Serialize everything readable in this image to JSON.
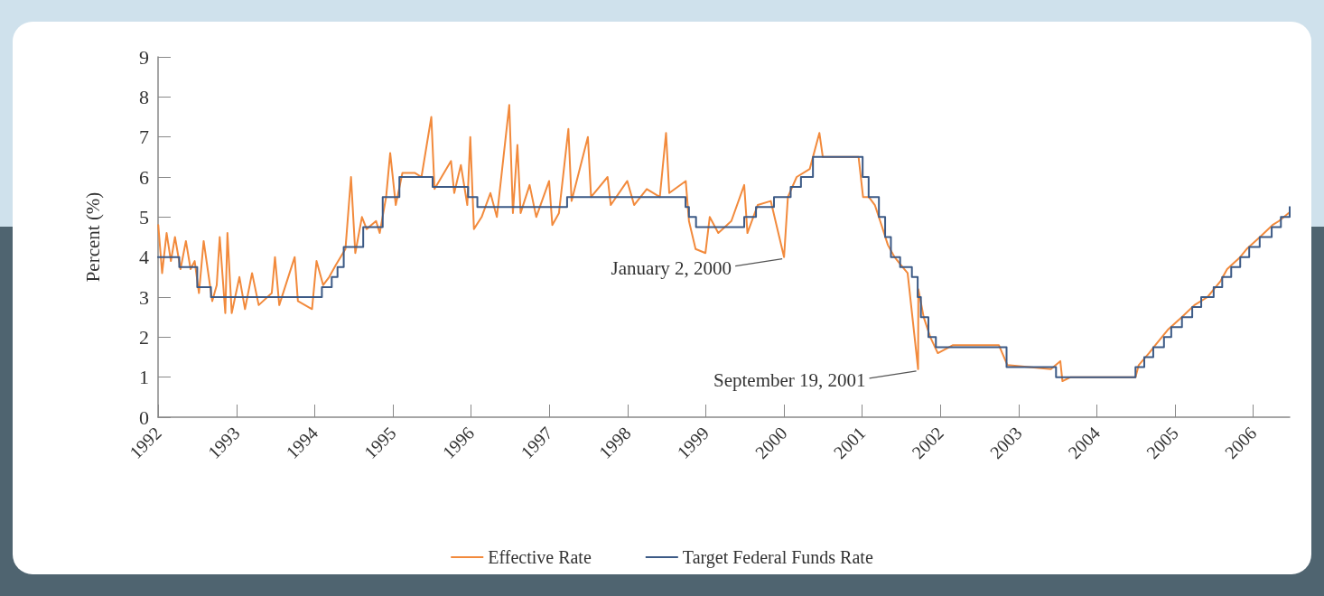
{
  "chart_data": {
    "type": "line",
    "ylabel": "Percent (%)",
    "xlim": [
      "1992-01-01",
      "2006-06-20"
    ],
    "xticks": [
      "1992",
      "1993",
      "1994",
      "1995",
      "1996",
      "1997",
      "1998",
      "1999",
      "2000",
      "2001",
      "2002",
      "2003",
      "2004",
      "2005",
      "2006"
    ],
    "ylim": [
      0,
      9
    ],
    "yticks": [
      0,
      1,
      2,
      3,
      4,
      5,
      6,
      7,
      8,
      9
    ],
    "grid": false,
    "legend": "bottom",
    "marker": "none",
    "line_style": "solid",
    "annotations": [
      {
        "text": "January 2, 2000",
        "x": "2000-01-02",
        "y": 4.0
      },
      {
        "text": "September 19, 2001",
        "x": "2001-09-19",
        "y": 1.2
      }
    ],
    "series": [
      {
        "name": "Effective Rate",
        "color": "#f28a3c",
        "x": [
          "1992-01-02",
          "1992-01-20",
          "1992-02-10",
          "1992-03-01",
          "1992-03-20",
          "1992-04-15",
          "1992-05-10",
          "1992-06-01",
          "1992-06-20",
          "1992-07-10",
          "1992-08-01",
          "1992-09-10",
          "1992-10-01",
          "1992-10-15",
          "1992-11-10",
          "1992-11-20",
          "1992-12-10",
          "1993-01-15",
          "1993-02-10",
          "1993-03-15",
          "1993-04-15",
          "1993-06-15",
          "1993-06-30",
          "1993-07-20",
          "1993-09-30",
          "1993-10-15",
          "1993-12-20",
          "1994-01-10",
          "1994-02-10",
          "1994-03-10",
          "1994-04-10",
          "1994-05-25",
          "1994-06-20",
          "1994-07-10",
          "1994-08-10",
          "1994-09-01",
          "1994-10-15",
          "1994-11-01",
          "1994-12-01",
          "1994-12-20",
          "1995-01-15",
          "1995-02-15",
          "1995-04-15",
          "1995-05-15",
          "1995-06-30",
          "1995-07-15",
          "1995-09-30",
          "1995-10-15",
          "1995-11-15",
          "1995-12-15",
          "1995-12-29",
          "1996-01-15",
          "1996-02-20",
          "1996-04-01",
          "1996-05-01",
          "1996-06-28",
          "1996-07-15",
          "1996-08-05",
          "1996-08-20",
          "1996-10-01",
          "1996-11-01",
          "1996-12-31",
          "1997-01-15",
          "1997-02-15",
          "1997-03-31",
          "1997-04-15",
          "1997-06-30",
          "1997-07-15",
          "1997-09-30",
          "1997-10-15",
          "1997-12-31",
          "1998-02-01",
          "1998-04-01",
          "1998-06-01",
          "1998-06-30",
          "1998-07-15",
          "1998-09-30",
          "1998-10-15",
          "1998-11-15",
          "1998-12-31",
          "1999-01-20",
          "1999-03-01",
          "1999-05-01",
          "1999-06-30",
          "1999-07-15",
          "1999-09-01",
          "1999-11-01",
          "2000-01-02",
          "2000-01-20",
          "2000-03-01",
          "2000-05-01",
          "2000-06-15",
          "2000-07-01",
          "2000-12-15",
          "2001-01-05",
          "2001-02-01",
          "2001-03-01",
          "2001-04-01",
          "2001-05-01",
          "2001-06-01",
          "2001-07-01",
          "2001-08-01",
          "2001-09-19",
          "2001-09-20",
          "2001-10-15",
          "2001-11-15",
          "2001-12-20",
          "2002-03-01",
          "2002-10-01",
          "2002-11-10",
          "2003-06-01",
          "2003-07-15",
          "2003-07-25",
          "2003-09-01",
          "2004-06-30",
          "2004-07-15",
          "2004-09-01",
          "2004-10-01",
          "2004-12-01",
          "2005-02-01",
          "2005-04-01",
          "2005-06-01",
          "2005-08-01",
          "2005-09-01",
          "2005-11-01",
          "2005-12-01",
          "2006-02-01",
          "2006-04-01",
          "2006-05-01",
          "2006-06-15"
        ],
        "values": [
          4.8,
          3.6,
          4.6,
          3.9,
          4.5,
          3.7,
          4.4,
          3.7,
          3.9,
          3.1,
          4.4,
          2.9,
          3.3,
          4.5,
          2.6,
          4.6,
          2.6,
          3.5,
          2.7,
          3.6,
          2.8,
          3.1,
          4.0,
          2.8,
          4.0,
          2.9,
          2.7,
          3.9,
          3.3,
          3.5,
          3.8,
          4.2,
          6.0,
          4.1,
          5.0,
          4.7,
          4.9,
          4.6,
          5.5,
          6.6,
          5.3,
          6.1,
          6.1,
          6.0,
          7.5,
          5.7,
          6.4,
          5.6,
          6.3,
          5.3,
          7.0,
          4.7,
          5.0,
          5.6,
          5.0,
          7.8,
          5.1,
          6.8,
          5.1,
          5.8,
          5.0,
          5.9,
          4.8,
          5.1,
          7.2,
          5.4,
          7.0,
          5.5,
          6.0,
          5.3,
          5.9,
          5.3,
          5.7,
          5.5,
          7.1,
          5.6,
          5.9,
          4.9,
          4.2,
          4.1,
          5.0,
          4.6,
          4.9,
          5.8,
          4.6,
          5.3,
          5.4,
          4.0,
          5.5,
          6.0,
          6.2,
          7.1,
          6.5,
          6.5,
          5.5,
          5.5,
          5.3,
          4.8,
          4.3,
          4.0,
          3.8,
          3.6,
          1.2,
          3.2,
          2.5,
          2.0,
          1.6,
          1.8,
          1.8,
          1.3,
          1.2,
          1.4,
          0.9,
          1.0,
          1.0,
          1.3,
          1.6,
          1.8,
          2.2,
          2.5,
          2.8,
          3.0,
          3.4,
          3.7,
          4.0,
          4.2,
          4.5,
          4.8,
          4.9,
          5.1
        ]
      },
      {
        "name": "Target Federal Funds Rate",
        "type": "step",
        "color": "#3c5a86",
        "x": [
          "1992-01-01",
          "1992-04-09",
          "1992-07-02",
          "1992-09-04",
          "1994-02-04",
          "1994-03-22",
          "1994-04-18",
          "1994-05-17",
          "1994-08-16",
          "1994-11-15",
          "1995-02-01",
          "1995-07-06",
          "1995-12-19",
          "1996-01-31",
          "1997-03-25",
          "1998-09-29",
          "1998-10-15",
          "1998-11-17",
          "1999-06-30",
          "1999-08-24",
          "1999-11-16",
          "2000-02-02",
          "2000-03-21",
          "2000-05-16",
          "2001-01-03",
          "2001-01-31",
          "2001-03-20",
          "2001-04-18",
          "2001-05-15",
          "2001-06-27",
          "2001-08-21",
          "2001-09-17",
          "2001-10-02",
          "2001-11-06",
          "2001-12-11",
          "2002-11-06",
          "2003-06-25",
          "2004-06-30",
          "2004-08-10",
          "2004-09-21",
          "2004-11-10",
          "2004-12-14",
          "2005-02-02",
          "2005-03-22",
          "2005-05-03",
          "2005-06-30",
          "2005-08-09",
          "2005-09-20",
          "2005-11-01",
          "2005-12-13",
          "2006-01-31",
          "2006-03-28",
          "2006-05-10",
          "2006-06-20"
        ],
        "values": [
          4.0,
          3.75,
          3.25,
          3.0,
          3.25,
          3.5,
          3.75,
          4.25,
          4.75,
          5.5,
          6.0,
          5.75,
          5.5,
          5.25,
          5.5,
          5.25,
          5.0,
          4.75,
          5.0,
          5.25,
          5.5,
          5.75,
          6.0,
          6.5,
          6.0,
          5.5,
          5.0,
          4.5,
          4.0,
          3.75,
          3.5,
          3.0,
          2.5,
          2.0,
          1.75,
          1.25,
          1.0,
          1.25,
          1.5,
          1.75,
          2.0,
          2.25,
          2.5,
          2.75,
          3.0,
          3.25,
          3.5,
          3.75,
          4.0,
          4.25,
          4.5,
          4.75,
          5.0,
          5.25
        ]
      }
    ]
  }
}
